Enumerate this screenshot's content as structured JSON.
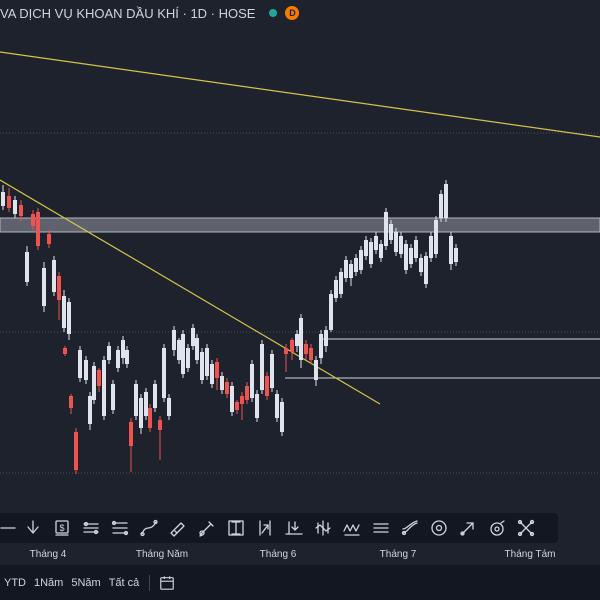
{
  "header": {
    "title": "VA DỊCH VỤ KHOAN DẦU KHÍ · 1D · HOSE",
    "badge": "D",
    "status_color": "#26a69a",
    "badge_color": "#f57c00"
  },
  "toolbar": {
    "tools": [
      {
        "name": "minus-line-icon"
      },
      {
        "name": "arrow-down-icon"
      },
      {
        "name": "price-label-icon"
      },
      {
        "name": "parallel-channel-icon"
      },
      {
        "name": "fib-retracement-icon"
      },
      {
        "name": "curve-line-icon"
      },
      {
        "name": "ruler-pencil-icon"
      },
      {
        "name": "brush-icon"
      },
      {
        "name": "text-cursor-icon"
      },
      {
        "name": "long-position-icon"
      },
      {
        "name": "projection-icon"
      },
      {
        "name": "price-range-icon"
      },
      {
        "name": "elliott-wave-icon"
      },
      {
        "name": "cycle-lines-icon"
      },
      {
        "name": "pitchfork-icon"
      },
      {
        "name": "circle-target-icon"
      },
      {
        "name": "arrow-up-right-icon"
      },
      {
        "name": "magnet-icon"
      },
      {
        "name": "cross-hair-icon"
      }
    ]
  },
  "xaxis": {
    "labels": [
      "Tháng 4",
      "Tháng Năm",
      "Tháng 6",
      "Tháng 7",
      "Tháng Tám"
    ]
  },
  "range_bar": {
    "buttons": [
      "YTD",
      "1Năm",
      "5Năm",
      "Tất cả"
    ],
    "calendar_icon": "calendar-icon"
  },
  "colors": {
    "up": "#dfe3ec",
    "down": "#ef5350",
    "trendline": "#d4c44a",
    "background": "#1e222d"
  },
  "chart_data": {
    "type": "candlestick",
    "x_labels": [
      "Tháng 4",
      "Tháng Năm",
      "Tháng 6",
      "Tháng 7",
      "Tháng Tám"
    ]
  }
}
